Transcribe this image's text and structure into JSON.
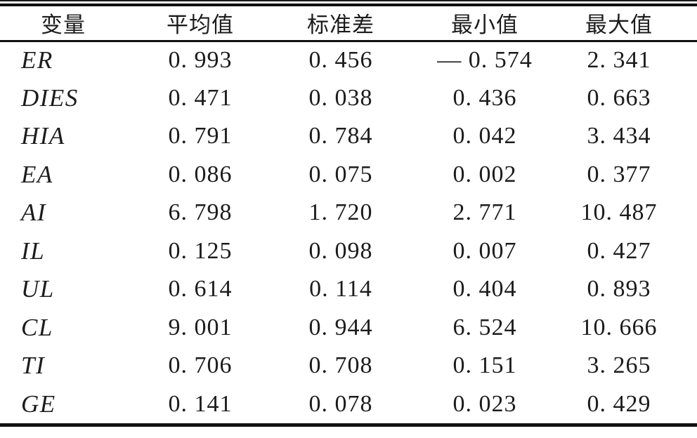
{
  "table": {
    "columns": [
      "变量",
      "平均值",
      "标准差",
      "最小值",
      "最大值"
    ],
    "rows": [
      {
        "variable": "ER",
        "mean": "0. 993",
        "sd": "0. 456",
        "min": "— 0. 574",
        "max": "2. 341"
      },
      {
        "variable": "DIES",
        "mean": "0. 471",
        "sd": "0. 038",
        "min": "0. 436",
        "max": "0. 663"
      },
      {
        "variable": "HIA",
        "mean": "0. 791",
        "sd": "0. 784",
        "min": "0. 042",
        "max": "3. 434"
      },
      {
        "variable": "EA",
        "mean": "0. 086",
        "sd": "0. 075",
        "min": "0. 002",
        "max": "0. 377"
      },
      {
        "variable": "AI",
        "mean": "6. 798",
        "sd": "1. 720",
        "min": "2. 771",
        "max": "10. 487"
      },
      {
        "variable": "IL",
        "mean": "0. 125",
        "sd": "0. 098",
        "min": "0. 007",
        "max": "0. 427"
      },
      {
        "variable": "UL",
        "mean": "0. 614",
        "sd": "0. 114",
        "min": "0. 404",
        "max": "0. 893"
      },
      {
        "variable": "CL",
        "mean": "9. 001",
        "sd": "0. 944",
        "min": "6. 524",
        "max": "10. 666"
      },
      {
        "variable": "TI",
        "mean": "0. 706",
        "sd": "0. 708",
        "min": "0. 151",
        "max": "3. 265"
      },
      {
        "variable": "GE",
        "mean": "0. 141",
        "sd": "0. 078",
        "min": "0. 023",
        "max": "0. 429"
      }
    ],
    "text_color": "#1c1c1c",
    "rule_color": "#111111"
  }
}
